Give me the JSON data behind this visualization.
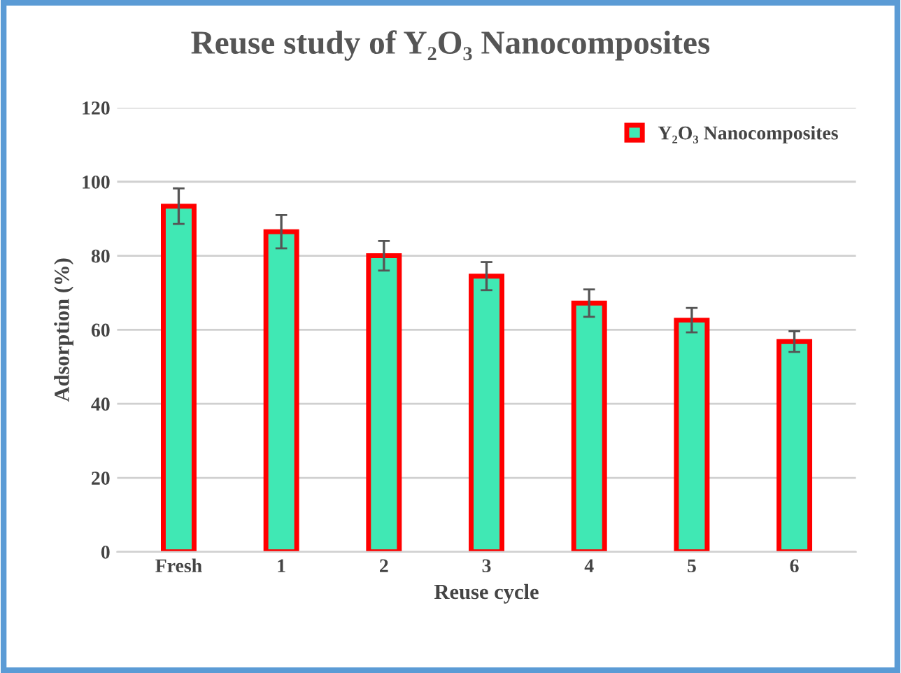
{
  "chart_data": {
    "type": "bar",
    "title": "Reuse study of Y₂O₃ Nanocomposites",
    "xlabel": "Reuse cycle",
    "ylabel": "Adsorption (%)",
    "categories": [
      "Fresh",
      "1",
      "2",
      "3",
      "4",
      "5",
      "6"
    ],
    "series": [
      {
        "name": "Y₂O₃ Nanocomposites",
        "color": "#40e8b4",
        "values": [
          93.4,
          86.5,
          80.0,
          74.5,
          67.2,
          62.6,
          56.8
        ],
        "errors": [
          4.8,
          4.5,
          4.0,
          3.8,
          3.7,
          3.3,
          2.8
        ]
      }
    ],
    "ylim": [
      0,
      120
    ],
    "yticks": [
      0,
      20,
      40,
      60,
      80,
      100,
      120
    ],
    "grid": "y",
    "legend": "top right"
  }
}
